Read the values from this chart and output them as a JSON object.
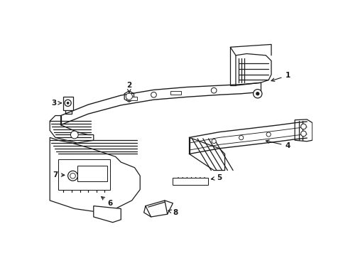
{
  "bg_color": "#ffffff",
  "line_color": "#1a1a1a",
  "lw": 0.9,
  "fig_w": 4.9,
  "fig_h": 3.6,
  "dpi": 100
}
